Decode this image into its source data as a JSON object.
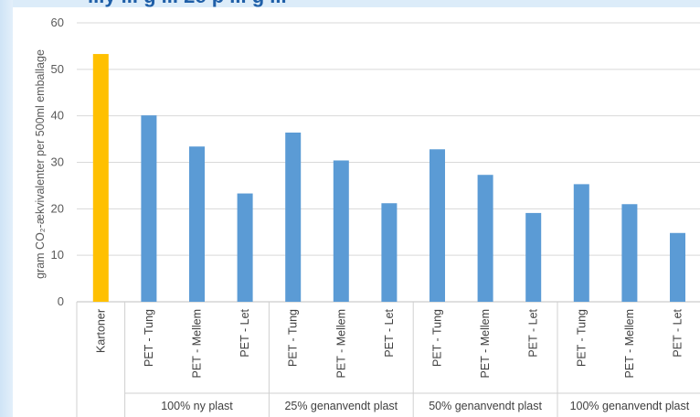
{
  "chart_data": {
    "type": "bar",
    "title": "...y  ... g  ... 2e p ... g ...",
    "ylabel": "gram CO₂-ækvivalenter per 500ml emballage",
    "ylim": [
      0,
      60
    ],
    "yticks": [
      0,
      10,
      20,
      30,
      40,
      50,
      60
    ],
    "categories": [
      "Kartoner",
      "PET - Tung",
      "PET - Mellem",
      "PET - Let",
      "PET - Tung",
      "PET - Mellem",
      "PET - Let",
      "PET - Tung",
      "PET - Mellem",
      "PET - Let",
      "PET - Tung",
      "PET - Mellem",
      "PET - Let"
    ],
    "groups": [
      {
        "label": "",
        "count": 1
      },
      {
        "label": "100% ny plast",
        "count": 3
      },
      {
        "label": "25% genanvendt plast",
        "count": 3
      },
      {
        "label": "50% genanvendt plast",
        "count": 3
      },
      {
        "label": "100% genanvendt plast",
        "count": 3
      }
    ],
    "values": [
      53.3,
      40.1,
      33.4,
      23.3,
      36.4,
      30.4,
      21.2,
      32.8,
      27.3,
      19.1,
      25.3,
      21.0,
      14.8
    ],
    "bar_colors": [
      "#ffc000",
      "#5b9bd5",
      "#5b9bd5",
      "#5b9bd5",
      "#5b9bd5",
      "#5b9bd5",
      "#5b9bd5",
      "#5b9bd5",
      "#5b9bd5",
      "#5b9bd5",
      "#5b9bd5",
      "#5b9bd5",
      "#5b9bd5"
    ],
    "grid": true,
    "legend": "none"
  }
}
